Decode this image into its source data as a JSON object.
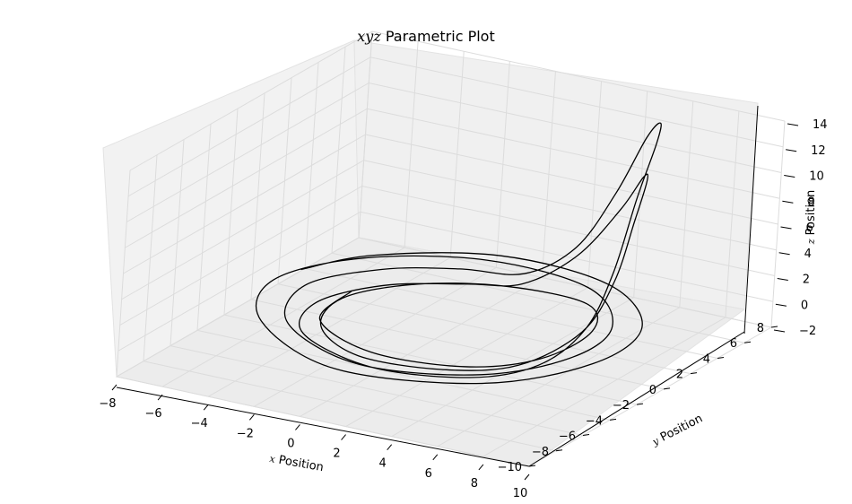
{
  "chart_data": {
    "type": "line",
    "projection": "3d",
    "title_math": "xyz",
    "title_text": " Parametric Plot",
    "xlabel_var": "x",
    "xlabel_text": " Position",
    "ylabel_var": "y",
    "ylabel_text": " Position",
    "zlabel_var": "z",
    "zlabel_text": " Position",
    "xlim": [
      -8,
      10
    ],
    "ylim": [
      -10,
      8
    ],
    "zlim": [
      -2,
      14
    ],
    "xticks": [
      "−8",
      "−6",
      "−4",
      "−2",
      "0",
      "2",
      "4",
      "6",
      "8",
      "10"
    ],
    "yticks": [
      "−10",
      "−8",
      "−6",
      "−4",
      "−2",
      "0",
      "2",
      "4",
      "6",
      "8"
    ],
    "zticks": [
      "−2",
      "0",
      "2",
      "4",
      "6",
      "8",
      "10",
      "12",
      "14"
    ],
    "grid": true,
    "series": [
      {
        "color": "#000000",
        "points": [
          [
            -6.5,
            1.0,
            0.3
          ],
          [
            -5.0,
            4.0,
            0.2
          ],
          [
            -1.0,
            6.5,
            0.2
          ],
          [
            4.0,
            6.0,
            0.2
          ],
          [
            7.5,
            2.5,
            0.3
          ],
          [
            8.0,
            -2.0,
            0.4
          ],
          [
            5.5,
            -6.0,
            0.3
          ],
          [
            0.0,
            -7.5,
            0.2
          ],
          [
            -5.0,
            -4.5,
            0.2
          ],
          [
            -6.8,
            -0.5,
            0.3
          ],
          [
            -5.2,
            3.5,
            0.2
          ],
          [
            -1.2,
            5.8,
            0.2
          ],
          [
            3.5,
            5.3,
            0.2
          ],
          [
            6.5,
            2.0,
            0.3
          ],
          [
            7.0,
            -1.8,
            0.4
          ],
          [
            5.0,
            -5.2,
            0.3
          ],
          [
            0.5,
            -6.6,
            0.2
          ],
          [
            -4.0,
            -4.2,
            0.2
          ],
          [
            -5.5,
            -0.4,
            0.3
          ],
          [
            -4.0,
            2.8,
            0.2
          ],
          [
            -1.5,
            4.3,
            0.3
          ],
          [
            1.0,
            4.8,
            0.6
          ],
          [
            2.5,
            6.0,
            2.5
          ],
          [
            3.5,
            7.0,
            6.5
          ],
          [
            4.5,
            7.3,
            11.0
          ],
          [
            5.5,
            6.5,
            13.0
          ],
          [
            6.5,
            4.5,
            13.0
          ],
          [
            7.2,
            2.0,
            10.5
          ],
          [
            7.5,
            0.0,
            6.0
          ],
          [
            7.3,
            -1.5,
            2.5
          ],
          [
            6.5,
            -3.5,
            0.6
          ],
          [
            4.8,
            -5.7,
            0.3
          ],
          [
            1.0,
            -6.6,
            0.2
          ],
          [
            -3.0,
            -4.8,
            0.2
          ],
          [
            -4.2,
            -1.8,
            0.3
          ],
          [
            -3.0,
            1.2,
            0.3
          ],
          [
            -0.5,
            3.0,
            0.3
          ],
          [
            1.5,
            3.8,
            0.6
          ],
          [
            3.0,
            5.2,
            2.5
          ],
          [
            4.2,
            6.2,
            6.0
          ],
          [
            5.2,
            6.0,
            9.0
          ],
          [
            6.2,
            4.5,
            10.0
          ],
          [
            7.0,
            2.3,
            8.5
          ],
          [
            7.3,
            0.5,
            5.0
          ],
          [
            7.0,
            -1.2,
            2.0
          ],
          [
            5.8,
            -3.8,
            0.5
          ],
          [
            3.5,
            -5.5,
            0.3
          ],
          [
            0.0,
            -5.8,
            0.2
          ],
          [
            -2.8,
            -3.8,
            0.2
          ],
          [
            -3.6,
            -0.8,
            0.3
          ],
          [
            -2.0,
            2.0,
            0.3
          ],
          [
            1.0,
            3.5,
            0.4
          ],
          [
            4.5,
            3.5,
            0.4
          ],
          [
            6.2,
            1.0,
            0.4
          ],
          [
            6.0,
            -2.5,
            0.3
          ],
          [
            4.0,
            -4.8,
            0.3
          ],
          [
            0.2,
            -5.2,
            0.2
          ],
          [
            -3.2,
            -3.2,
            0.2
          ],
          [
            -3.7,
            0.0,
            0.3
          ]
        ]
      }
    ]
  }
}
